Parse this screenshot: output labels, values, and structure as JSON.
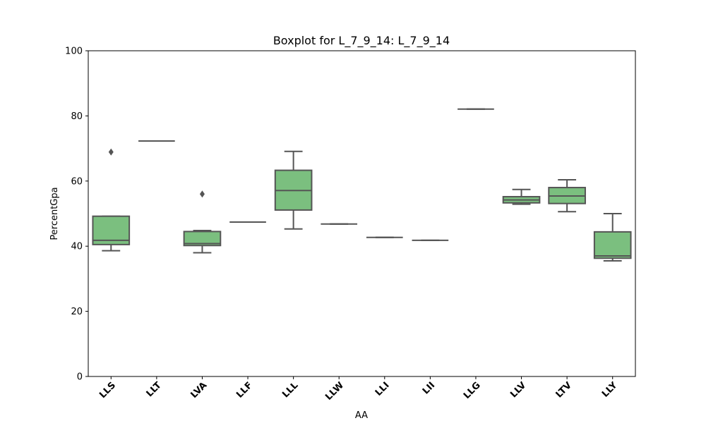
{
  "chart_data": {
    "type": "boxplot",
    "title": "Boxplot for L_7_9_14: L_7_9_14",
    "xlabel": "AA",
    "ylabel": "PercentGpa",
    "ylim": [
      0,
      100
    ],
    "yticks": [
      0,
      20,
      40,
      60,
      80,
      100
    ],
    "grid": false,
    "box_color": "#7bbf7f",
    "line_color": "#555555",
    "categories": [
      "LLS",
      "LLT",
      "LVA",
      "LLF",
      "LLL",
      "LLW",
      "LLI",
      "LII",
      "LLG",
      "LLV",
      "LTV",
      "LLY"
    ],
    "boxes": [
      {
        "whisker_low": 38.6,
        "q1": 40.5,
        "median": 41.8,
        "q3": 49.2,
        "whisker_high": 49.2,
        "outliers": [
          68.9
        ]
      },
      {
        "whisker_low": 72.3,
        "q1": 72.3,
        "median": 72.3,
        "q3": 72.3,
        "whisker_high": 72.3,
        "outliers": []
      },
      {
        "whisker_low": 38.0,
        "q1": 40.2,
        "median": 40.8,
        "q3": 44.5,
        "whisker_high": 44.8,
        "outliers": [
          56.0
        ]
      },
      {
        "whisker_low": 47.4,
        "q1": 47.4,
        "median": 47.4,
        "q3": 47.4,
        "whisker_high": 47.4,
        "outliers": []
      },
      {
        "whisker_low": 45.3,
        "q1": 51.1,
        "median": 57.1,
        "q3": 63.3,
        "whisker_high": 69.1,
        "outliers": []
      },
      {
        "whisker_low": 46.8,
        "q1": 46.8,
        "median": 46.8,
        "q3": 46.8,
        "whisker_high": 46.8,
        "outliers": []
      },
      {
        "whisker_low": 42.7,
        "q1": 42.7,
        "median": 42.7,
        "q3": 42.7,
        "whisker_high": 42.7,
        "outliers": []
      },
      {
        "whisker_low": 41.8,
        "q1": 41.8,
        "median": 41.8,
        "q3": 41.8,
        "whisker_high": 41.8,
        "outliers": []
      },
      {
        "whisker_low": 82.1,
        "q1": 82.1,
        "median": 82.1,
        "q3": 82.1,
        "whisker_high": 82.1,
        "outliers": []
      },
      {
        "whisker_low": 52.9,
        "q1": 53.3,
        "median": 54.2,
        "q3": 55.2,
        "whisker_high": 57.4,
        "outliers": []
      },
      {
        "whisker_low": 50.6,
        "q1": 53.1,
        "median": 55.4,
        "q3": 58.0,
        "whisker_high": 60.4,
        "outliers": []
      },
      {
        "whisker_low": 35.5,
        "q1": 36.3,
        "median": 37.0,
        "q3": 44.4,
        "whisker_high": 50.0,
        "outliers": []
      }
    ]
  }
}
